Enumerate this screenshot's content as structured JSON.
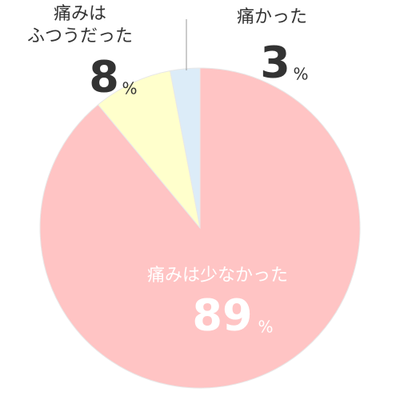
{
  "chart_data": {
    "type": "pie",
    "categories": [
      "痛みは少なかった",
      "痛みは\nふつうだった",
      "痛かった"
    ],
    "values": [
      89,
      8,
      3
    ],
    "colors": [
      "#ffc4c4",
      "#ffffcc",
      "#dcecf8"
    ],
    "unit": "%"
  }
}
